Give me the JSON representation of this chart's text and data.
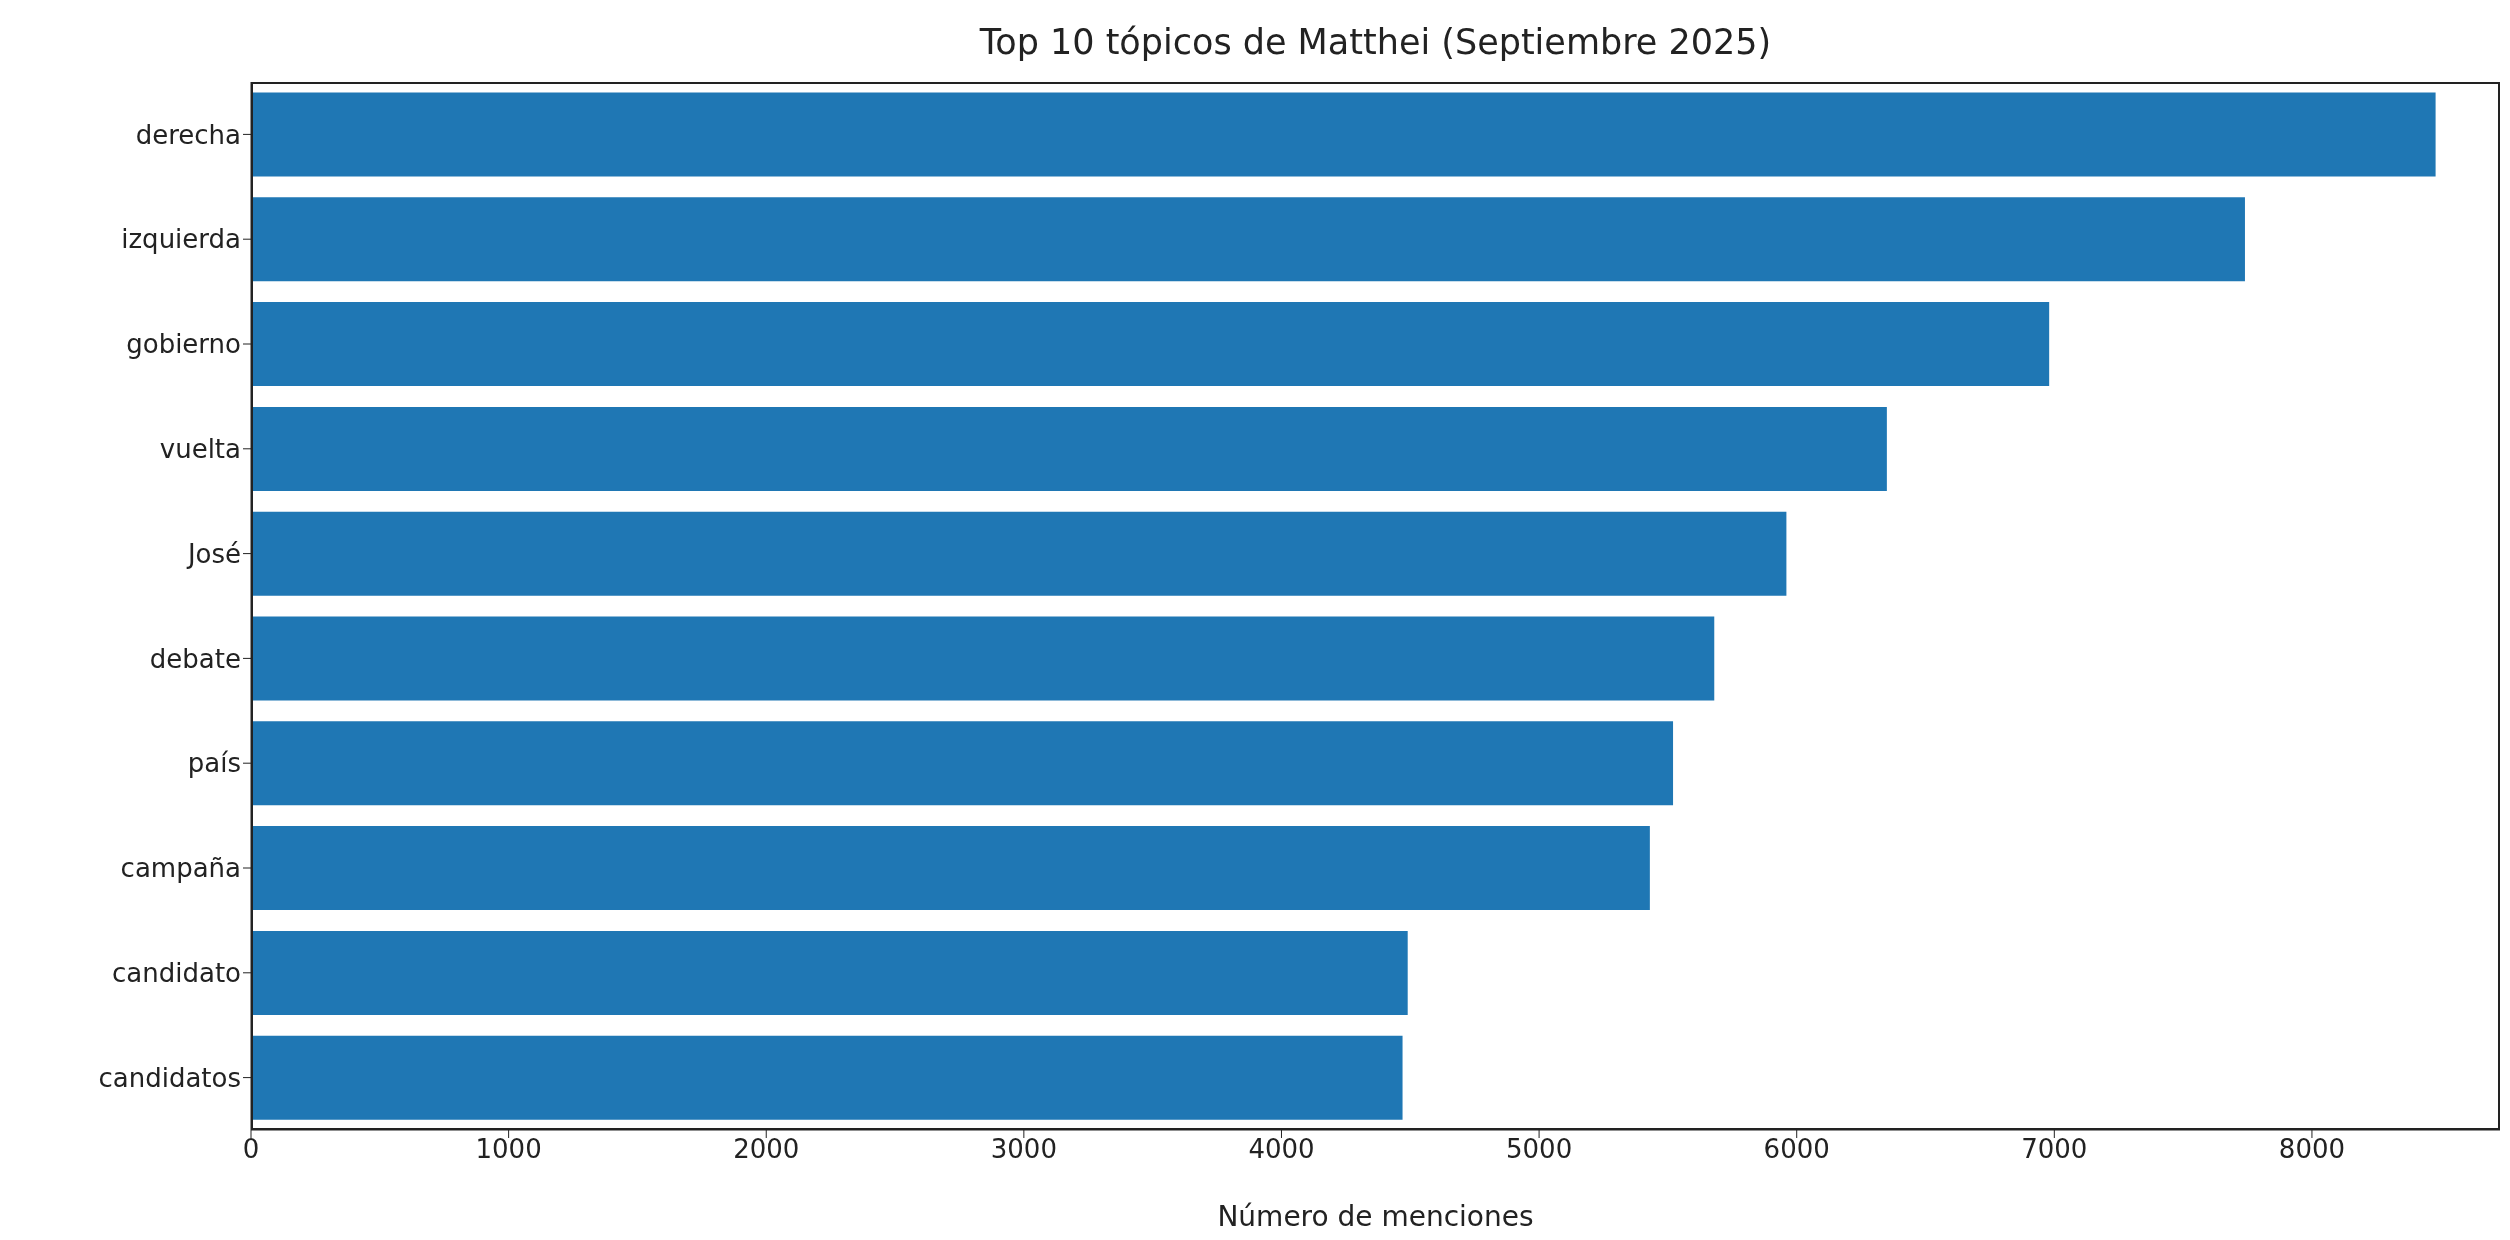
{
  "chart_data": {
    "type": "bar",
    "orientation": "horizontal",
    "title": "Top 10 tópicos de Matthei (Septiembre 2025)",
    "xlabel": "Número de menciones",
    "categories": [
      "derecha",
      "izquierda",
      "gobierno",
      "vuelta",
      "José",
      "debate",
      "país",
      "campaña",
      "candidato",
      "candidatos"
    ],
    "values": [
      8480,
      7740,
      6980,
      6350,
      5960,
      5680,
      5520,
      5430,
      4490,
      4470
    ],
    "color": "#1f77b4",
    "xlim": [
      0,
      8730
    ],
    "xticks": [
      0,
      1000,
      2000,
      3000,
      4000,
      5000,
      6000,
      7000,
      8000
    ],
    "grid": false,
    "legend": false
  }
}
